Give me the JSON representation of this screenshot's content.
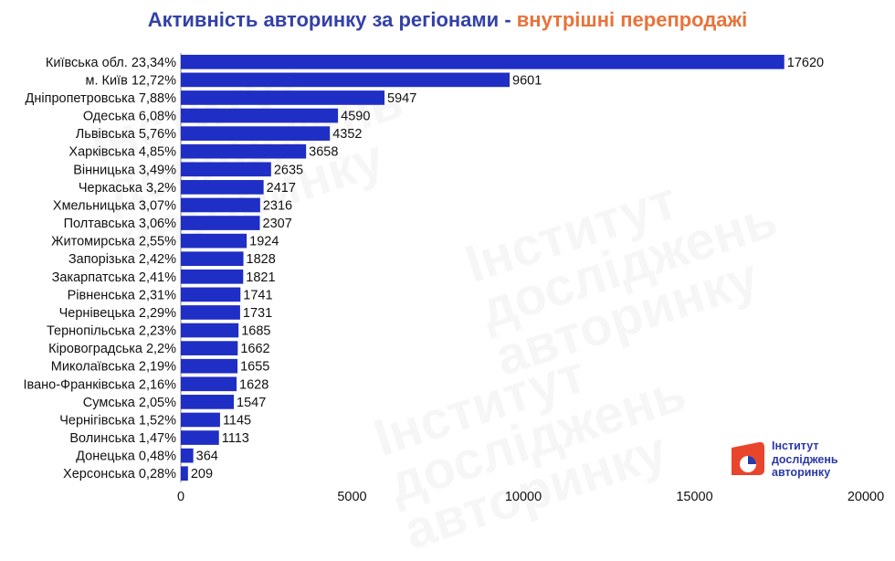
{
  "title": {
    "main": "Активність авторинку за регіонами - ",
    "highlight": "внутрішні перепродажі"
  },
  "watermark_text": "Інститут\nдосліджень\nавторинку",
  "logo": {
    "text": "Інститут\nдосліджень\nавторинку"
  },
  "colors": {
    "bar": "#1f2ec4",
    "title_main": "#3341a8",
    "title_highlight": "#e8733a",
    "logo_red": "#e8452c"
  },
  "chart_data": {
    "type": "bar",
    "orientation": "horizontal",
    "categories": [
      "Київська обл. 23,34%",
      "м. Київ 12,72%",
      "Дніпропетровська 7,88%",
      "Одеська 6,08%",
      "Львівська 5,76%",
      "Харківська 4,85%",
      "Вінницька 3,49%",
      "Черкаська 3,2%",
      "Хмельницька 3,07%",
      "Полтавська 3,06%",
      "Житомирська 2,55%",
      "Запорізька 2,42%",
      "Закарпатська 2,41%",
      "Рівненська 2,31%",
      "Чернівецька 2,29%",
      "Тернопільська 2,23%",
      "Кіровоградська 2,2%",
      "Миколаївська 2,19%",
      "Івано-Франківська 2,16%",
      "Сумська 2,05%",
      "Чернігівська 1,52%",
      "Волинська 1,47%",
      "Донецька 0,48%",
      "Херсонська 0,28%"
    ],
    "values": [
      17620,
      9601,
      5947,
      4590,
      4352,
      3658,
      2635,
      2417,
      2316,
      2307,
      1924,
      1828,
      1821,
      1741,
      1731,
      1685,
      1662,
      1655,
      1628,
      1547,
      1145,
      1113,
      364,
      209
    ],
    "xlim": [
      0,
      20000
    ],
    "xticks": [
      0,
      5000,
      10000,
      15000,
      20000
    ],
    "grid": false,
    "legend": "none"
  }
}
